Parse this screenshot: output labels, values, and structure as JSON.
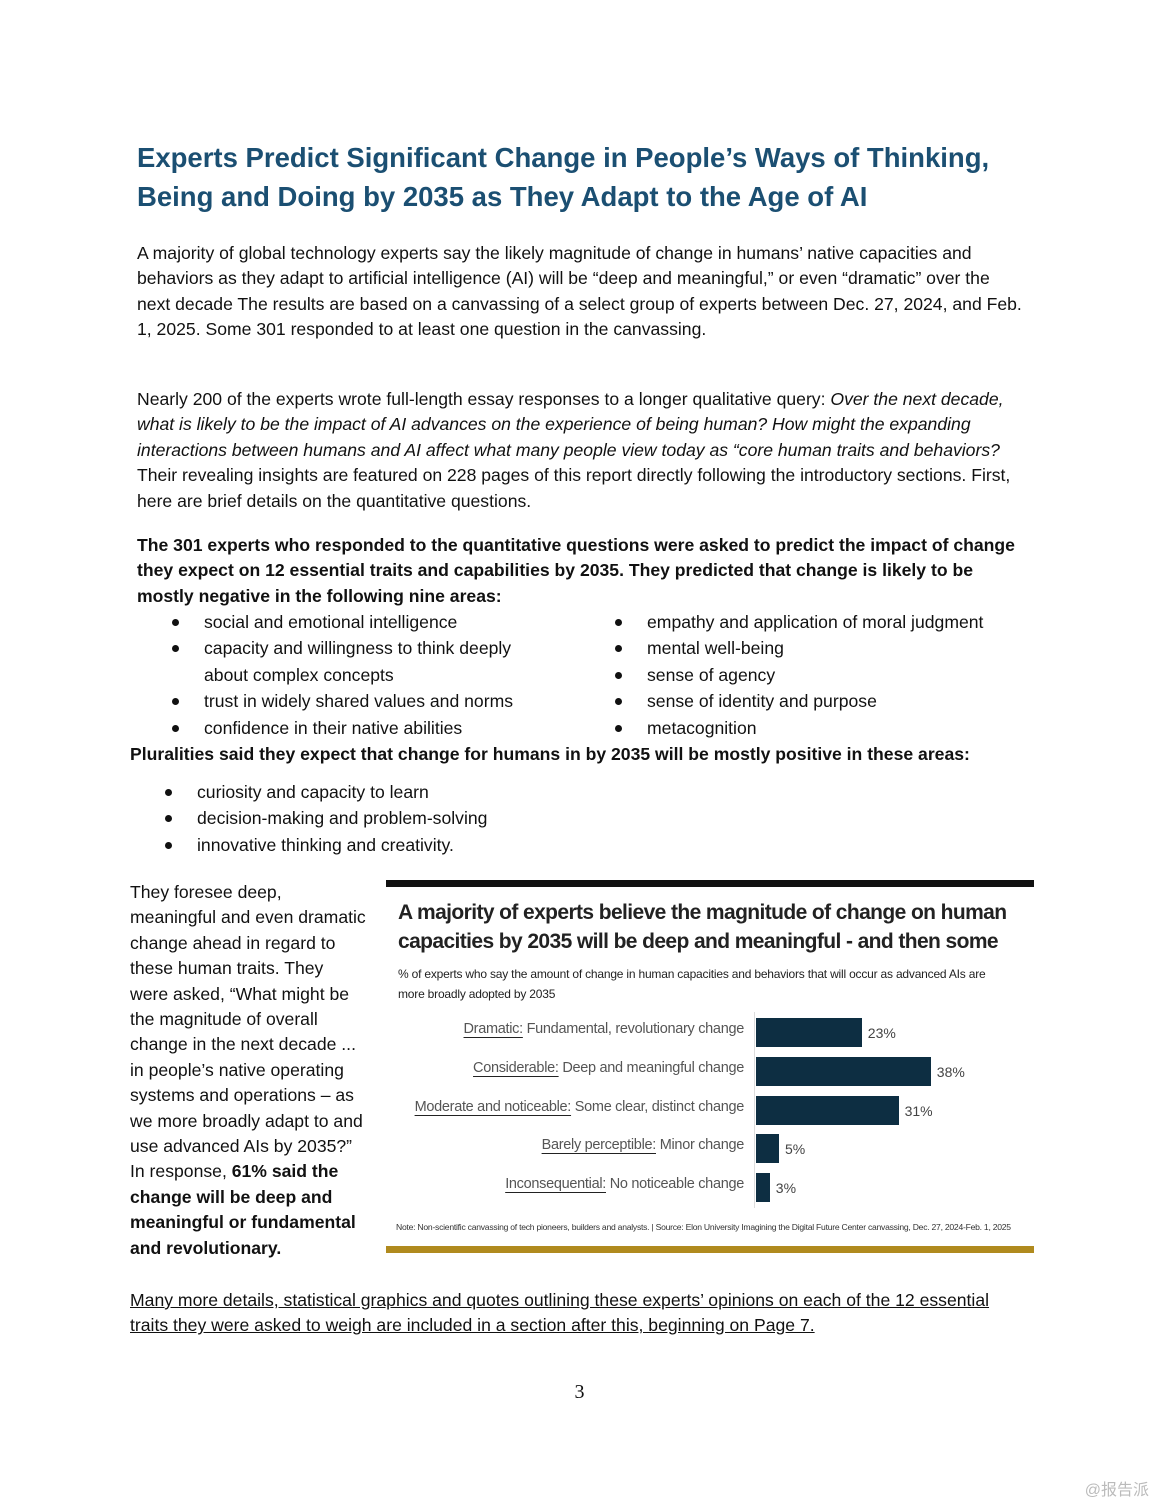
{
  "title": "Experts Predict Significant Change in People’s Ways of Thinking, Being and Doing by 2035 as They Adapt to the Age of AI",
  "para1": "A majority of global technology experts say the likely magnitude of change in humans’ native capacities and behaviors as they adapt to artificial intelligence (AI) will be “deep and meaningful,” or even “dramatic” over the next decade The results are based on a canvassing of a select group of experts between Dec. 27, 2024, and Feb. 1, 2025. Some 301 responded to at least one question in the canvassing.",
  "para2_start": "Nearly 200 of the experts wrote full-length essay responses to a longer qualitative query: ",
  "para2_italic": "Over the next decade, what is likely to be the impact of AI advances on the experience of being human? How might the expanding interactions between humans and AI affect what many people view today as “core human traits and behaviors?",
  "para2_end": " Their revealing insights are featured on 228 pages of this report directly following the introductory sections. First, here are brief details on the quantitative questions.",
  "bold_intro": "The 301 experts who responded to the quantitative questions were asked to predict the impact of change they expect on 12 essential traits and capabilities by 2035. They predicted that change is likely to be mostly negative in the following nine areas:",
  "negative_left": [
    "social and emotional intelligence",
    "capacity and willingness to think deeply about complex concepts",
    "trust in widely shared values and norms",
    "confidence in their native abilities"
  ],
  "negative_right": [
    "empathy and application of moral judgment",
    "mental well-being",
    "sense of agency",
    "sense of identity and purpose",
    "metacognition"
  ],
  "positive_intro": "Pluralities said they expect that change for humans in by 2035 will be mostly positive in these areas:",
  "positive": [
    "curiosity and capacity to learn",
    "decision-making and problem-solving",
    "innovative thinking and creativity."
  ],
  "side_text": "They foresee deep, meaningful and even dramatic change ahead in regard to these human traits. They were asked, “What might be the magnitude of overall change in the next decade ... in people’s native operating systems and operations – as we more broadly adapt to and use advanced AIs by 2035?” In response, ",
  "side_bold": "61% said the change will be deep and meaningful or fundamental and revolutionary.",
  "link_text": "Many more details, statistical graphics and quotes outlining these experts’ opinions on each of the 12 essential traits they were asked to weigh are included in a section after this, beginning on Page 7.",
  "page_number": "3",
  "watermark": "@报告派",
  "chart_data": {
    "type": "bar",
    "title": "A majority of experts believe the magnitude of change on human capacities by 2035 will be deep and meaningful - and then some",
    "subtitle": "% of experts who say the amount of change in human capacities and behaviors that will occur as advanced AIs are more broadly adopted by 2035",
    "categories": [
      {
        "term": "Dramatic:",
        "desc": " Fundamental, revolutionary change"
      },
      {
        "term": "Considerable:",
        "desc": " Deep and meaningful change"
      },
      {
        "term": "Moderate and noticeable:",
        "desc": " Some clear, distinct change"
      },
      {
        "term": "Barely perceptible:",
        "desc": " Minor change"
      },
      {
        "term": "Inconsequential:",
        "desc": " No noticeable change"
      }
    ],
    "values": [
      23,
      38,
      31,
      5,
      3
    ],
    "value_labels": [
      "23%",
      "38%",
      "31%",
      "5%",
      "3%"
    ],
    "note": "Note: Non-scientific canvassing of tech pioneers, builders and analysts. | Source: Elon University Imagining the Digital Future Center canvassing,  Dec. 27, 2024-Feb. 1, 2025",
    "bar_color": "#0d2e42"
  }
}
